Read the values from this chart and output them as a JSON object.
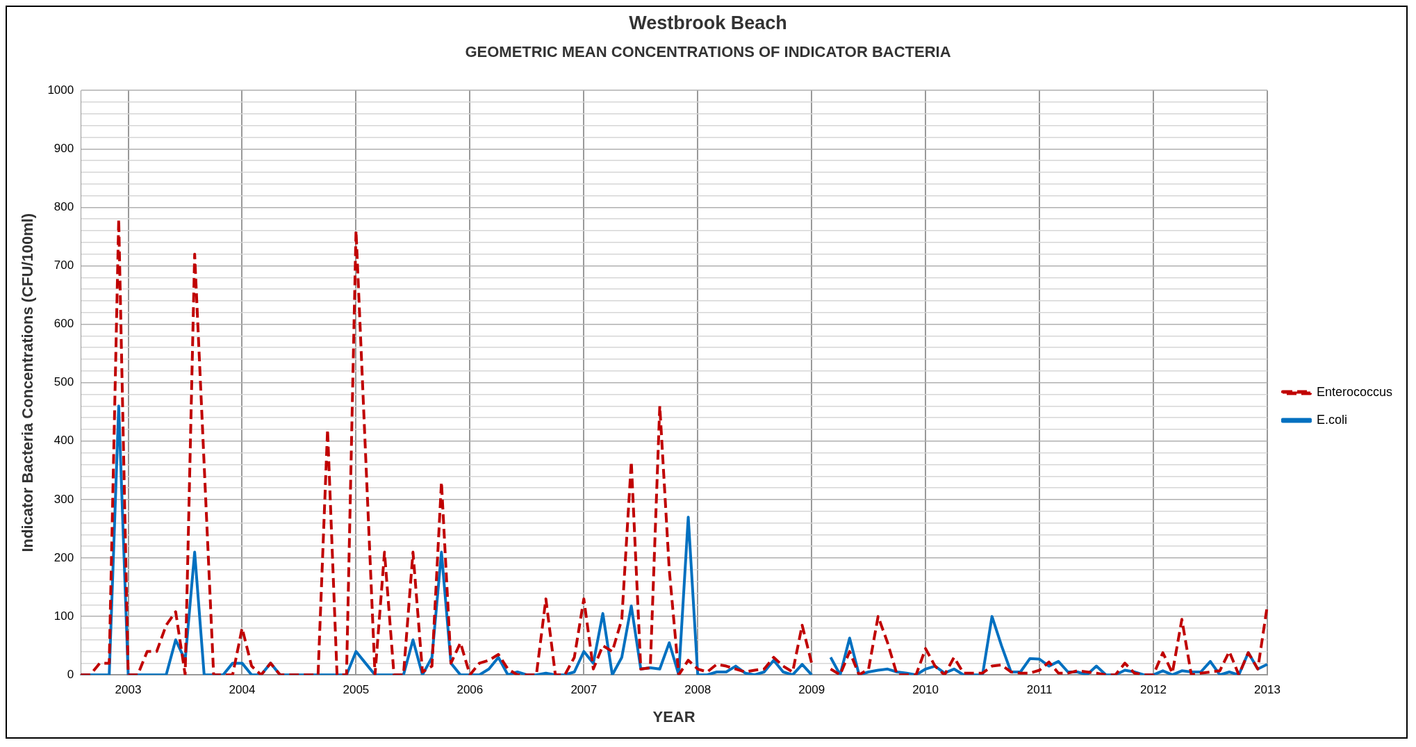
{
  "chart_data": {
    "type": "line",
    "title": "Westbrook Beach",
    "subtitle": "GEOMETRIC MEAN CONCENTRATIONS OF INDICATOR BACTERIA",
    "xlabel": "YEAR",
    "ylabel": "Indicator Bacteria Concentrations (CFU/100ml)",
    "categories": [
      null,
      null,
      null,
      null,
      null,
      "2003",
      null,
      null,
      null,
      null,
      null,
      null,
      null,
      null,
      null,
      null,
      null,
      "2004",
      null,
      null,
      null,
      null,
      null,
      null,
      null,
      null,
      null,
      null,
      null,
      "2005",
      null,
      null,
      null,
      null,
      null,
      null,
      null,
      null,
      null,
      null,
      null,
      "2006",
      null,
      null,
      null,
      null,
      null,
      null,
      null,
      null,
      null,
      null,
      null,
      "2007",
      null,
      null,
      null,
      null,
      null,
      null,
      null,
      null,
      null,
      null,
      null,
      "2008",
      null,
      null,
      null,
      null,
      null,
      null,
      null,
      null,
      null,
      null,
      null,
      "2009",
      null,
      null,
      null,
      null,
      null,
      null,
      null,
      null,
      null,
      null,
      null,
      "2010",
      null,
      null,
      null,
      null,
      null,
      null,
      null,
      null,
      null,
      null,
      null,
      "2011",
      null,
      null,
      null,
      null,
      null,
      null,
      null,
      null,
      null,
      null,
      null,
      "2012",
      null,
      null,
      null,
      null,
      null,
      null,
      null,
      null,
      null,
      null,
      null,
      "2013"
    ],
    "series": [
      {
        "name": "E.coli",
        "color": "#0070c0",
        "line_style": "solid",
        "values": [
          0,
          0,
          0,
          0,
          460,
          0,
          0,
          0,
          0,
          0,
          60,
          25,
          210,
          0,
          0,
          0,
          20,
          20,
          0,
          0,
          20,
          0,
          0,
          0,
          0,
          0,
          0,
          0,
          0,
          40,
          20,
          0,
          0,
          0,
          0,
          60,
          0,
          30,
          210,
          20,
          0,
          0,
          0,
          10,
          30,
          0,
          5,
          0,
          0,
          3,
          0,
          0,
          5,
          40,
          20,
          105,
          0,
          30,
          118,
          10,
          12,
          10,
          55,
          0,
          270,
          0,
          0,
          5,
          5,
          15,
          3,
          0,
          5,
          25,
          5,
          0,
          18,
          0,
          null,
          30,
          0,
          63,
          0,
          5,
          8,
          10,
          5,
          3,
          0,
          10,
          15,
          3,
          10,
          0,
          0,
          0,
          100,
          50,
          5,
          5,
          28,
          27,
          15,
          23,
          5,
          5,
          0,
          15,
          0,
          0,
          8,
          5,
          0,
          0,
          7,
          0,
          7,
          5,
          5,
          23,
          0,
          5,
          0,
          38,
          10,
          18
        ]
      },
      {
        "name": "Enterococcus",
        "color": "#c00000",
        "line_style": "dashed",
        "values": [
          0,
          0,
          20,
          20,
          780,
          0,
          0,
          40,
          40,
          85,
          108,
          0,
          720,
          360,
          0,
          0,
          0,
          80,
          15,
          0,
          20,
          0,
          0,
          0,
          0,
          0,
          420,
          0,
          0,
          760,
          380,
          0,
          210,
          0,
          0,
          210,
          5,
          15,
          330,
          20,
          55,
          0,
          20,
          25,
          35,
          10,
          0,
          0,
          0,
          130,
          0,
          0,
          30,
          130,
          10,
          50,
          40,
          95,
          365,
          10,
          12,
          460,
          180,
          0,
          25,
          10,
          5,
          18,
          15,
          10,
          5,
          8,
          10,
          30,
          15,
          5,
          85,
          20,
          null,
          10,
          0,
          40,
          0,
          10,
          100,
          55,
          0,
          0,
          0,
          45,
          15,
          0,
          30,
          3,
          3,
          3,
          15,
          17,
          5,
          3,
          3,
          8,
          22,
          3,
          3,
          7,
          5,
          3,
          0,
          0,
          20,
          3,
          0,
          0,
          38,
          3,
          95,
          0,
          3,
          5,
          7,
          40,
          0,
          38,
          10,
          118
        ]
      }
    ],
    "ylim": [
      0,
      1000
    ],
    "yticks": [
      0,
      {
        "value": 20,
        "label": null
      },
      {
        "value": 40,
        "label": null
      },
      {
        "value": 60,
        "label": null
      },
      {
        "value": 80,
        "label": null
      },
      100,
      {
        "value": 120,
        "label": null
      },
      {
        "value": 140,
        "label": null
      },
      {
        "value": 160,
        "label": null
      },
      {
        "value": 180,
        "label": null
      },
      200,
      {
        "value": 220,
        "label": null
      },
      {
        "value": 240,
        "label": null
      },
      {
        "value": 260,
        "label": null
      },
      {
        "value": 280,
        "label": null
      },
      300,
      {
        "value": 320,
        "label": null
      },
      {
        "value": 340,
        "label": null
      },
      {
        "value": 360,
        "label": null
      },
      {
        "value": 380,
        "label": null
      },
      400,
      {
        "value": 420,
        "label": null
      },
      {
        "value": 440,
        "label": null
      },
      {
        "value": 460,
        "label": null
      },
      {
        "value": 480,
        "label": null
      },
      500,
      {
        "value": 520,
        "label": null
      },
      {
        "value": 540,
        "label": null
      },
      {
        "value": 560,
        "label": null
      },
      {
        "value": 580,
        "label": null
      },
      600,
      {
        "value": 620,
        "label": null
      },
      {
        "value": 640,
        "label": null
      },
      {
        "value": 660,
        "label": null
      },
      {
        "value": 680,
        "label": null
      },
      700,
      {
        "value": 720,
        "label": null
      },
      {
        "value": 740,
        "label": null
      },
      {
        "value": 760,
        "label": null
      },
      {
        "value": 780,
        "label": null
      },
      800,
      {
        "value": 820,
        "label": null
      },
      {
        "value": 840,
        "label": null
      },
      {
        "value": 860,
        "label": null
      },
      {
        "value": 880,
        "label": null
      },
      900,
      {
        "value": 920,
        "label": null
      },
      {
        "value": 940,
        "label": null
      },
      {
        "value": 960,
        "label": null
      },
      {
        "value": 980,
        "label": null
      },
      1000
    ],
    "grid": true,
    "legend": "right",
    "marker": "none"
  }
}
